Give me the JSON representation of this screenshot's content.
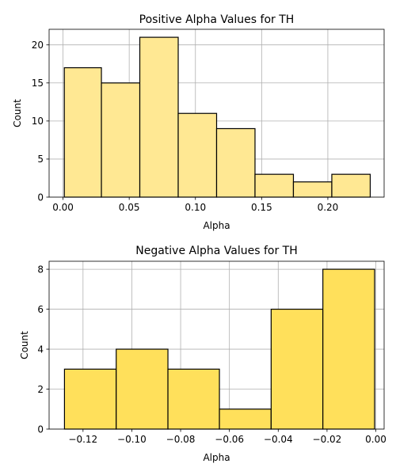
{
  "chart_data": [
    {
      "type": "histogram",
      "title": "Positive Alpha Values for TH",
      "xlabel": "Alpha",
      "ylabel": "Count",
      "bar_color": "#ffe893",
      "edge_color": "#000000",
      "grid": true,
      "xlim": [
        -0.0105,
        0.2425
      ],
      "ylim": [
        0,
        22.05
      ],
      "xticks": [
        0.0,
        0.05,
        0.1,
        0.15,
        0.2
      ],
      "xtick_labels": [
        "0.00",
        "0.05",
        "0.10",
        "0.15",
        "0.20"
      ],
      "yticks": [
        0,
        5,
        10,
        15,
        20
      ],
      "ytick_labels": [
        "0",
        "5",
        "10",
        "15",
        "20"
      ],
      "bins": [
        {
          "x0": 0.001,
          "x1": 0.029,
          "count": 17
        },
        {
          "x0": 0.029,
          "x1": 0.058,
          "count": 15
        },
        {
          "x0": 0.058,
          "x1": 0.087,
          "count": 21
        },
        {
          "x0": 0.087,
          "x1": 0.116,
          "count": 11
        },
        {
          "x0": 0.116,
          "x1": 0.145,
          "count": 9
        },
        {
          "x0": 0.145,
          "x1": 0.174,
          "count": 3
        },
        {
          "x0": 0.174,
          "x1": 0.203,
          "count": 2
        },
        {
          "x0": 0.203,
          "x1": 0.232,
          "count": 3
        }
      ]
    },
    {
      "type": "histogram",
      "title": "Negative Alpha Values for TH",
      "xlabel": "Alpha",
      "ylabel": "Count",
      "bar_color": "#ffe05b",
      "edge_color": "#000000",
      "grid": true,
      "xlim": [
        -0.1339,
        0.0034
      ],
      "ylim": [
        0,
        8.4
      ],
      "xticks": [
        -0.12,
        -0.1,
        -0.08,
        -0.06,
        -0.04,
        -0.02,
        0.0
      ],
      "xtick_labels": [
        "−0.12",
        "−0.10",
        "−0.08",
        "−0.06",
        "−0.04",
        "−0.02",
        "0.00"
      ],
      "yticks": [
        0,
        2,
        4,
        6,
        8
      ],
      "ytick_labels": [
        "0",
        "2",
        "4",
        "6",
        "8"
      ],
      "bins": [
        {
          "x0": -0.1276,
          "x1": -0.1064,
          "count": 3
        },
        {
          "x0": -0.1064,
          "x1": -0.0852,
          "count": 4
        },
        {
          "x0": -0.0852,
          "x1": -0.0641,
          "count": 3
        },
        {
          "x0": -0.0641,
          "x1": -0.0429,
          "count": 1
        },
        {
          "x0": -0.0429,
          "x1": -0.0217,
          "count": 6
        },
        {
          "x0": -0.0217,
          "x1": -0.0005,
          "count": 8
        }
      ]
    }
  ]
}
